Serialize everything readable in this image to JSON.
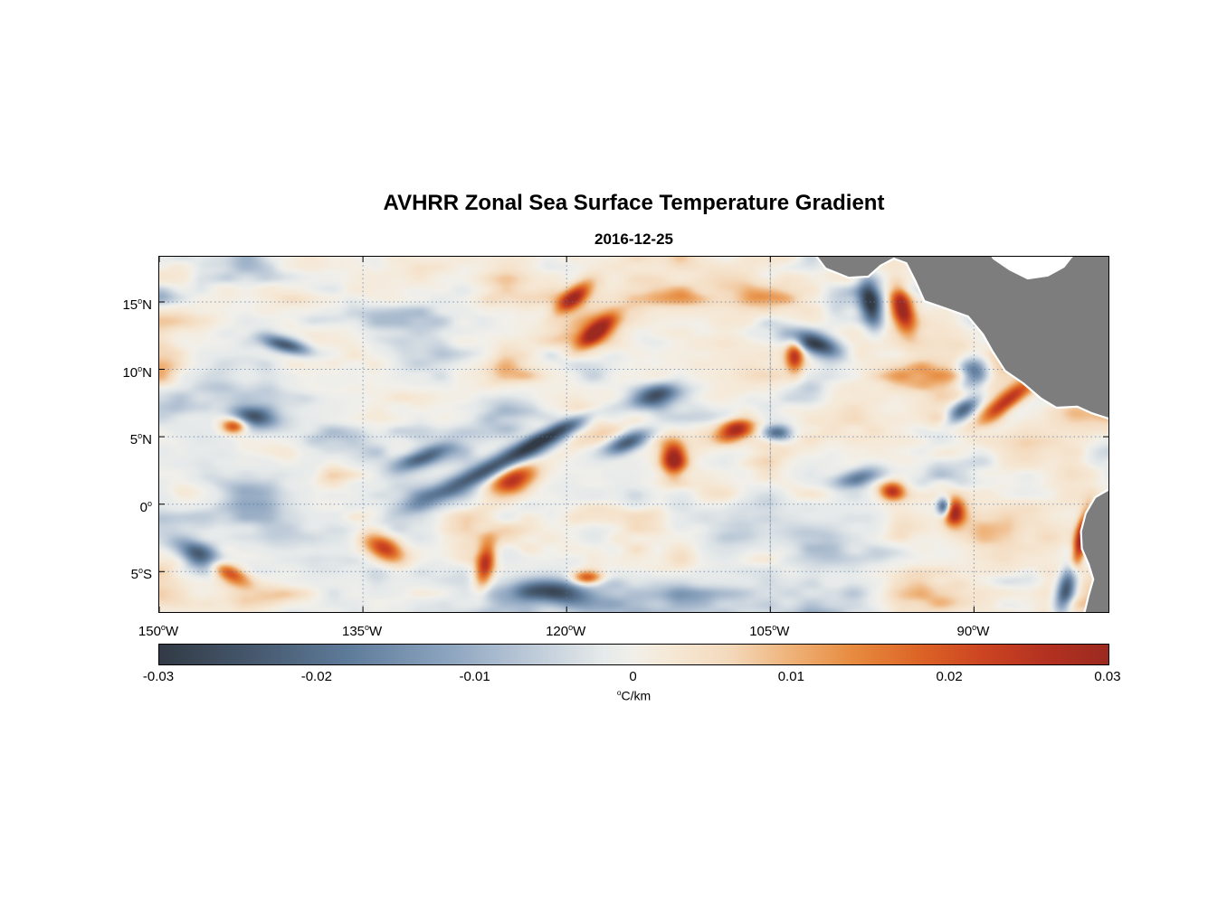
{
  "chart_data": {
    "type": "heatmap",
    "title": "AVHRR Zonal Sea Surface Temperature Gradient",
    "date": "2016-12-25",
    "x_axis": {
      "range": [
        -150,
        -80.1
      ],
      "tick_values": [
        -150,
        -135,
        -120,
        -105,
        -90
      ],
      "tick_labels": [
        "150°W",
        "135°W",
        "120°W",
        "105°W",
        "90°W"
      ],
      "grid_lons": [
        -135,
        -120,
        -105,
        -90
      ]
    },
    "y_axis": {
      "range": [
        -8.0,
        18.35
      ],
      "tick_values": [
        15,
        10,
        5,
        0,
        -5
      ],
      "tick_labels": [
        "15°N",
        "10°N",
        "5°N",
        "0°",
        "5°S"
      ],
      "grid_lats": [
        15,
        10,
        5,
        0,
        -5
      ]
    },
    "grid": {
      "style": "dotted",
      "color": "#5a7aa0",
      "swath_seam_lon": -105
    },
    "colorbar": {
      "range": [
        -0.03,
        0.03
      ],
      "tick_values": [
        -0.03,
        -0.02,
        -0.01,
        0,
        0.01,
        0.02,
        0.03
      ],
      "tick_labels": [
        "-0.03",
        "-0.02",
        "-0.01",
        "0",
        "0.01",
        "0.02",
        "0.03"
      ],
      "label": "°C/km",
      "stops": [
        [
          -0.03,
          "#323b46"
        ],
        [
          -0.024,
          "#47596f"
        ],
        [
          -0.018,
          "#5f7c9b"
        ],
        [
          -0.012,
          "#8ba3be"
        ],
        [
          -0.006,
          "#c2cedb"
        ],
        [
          -0.002,
          "#e6eaea"
        ],
        [
          0.0,
          "#f2f0ea"
        ],
        [
          0.002,
          "#f6ead9"
        ],
        [
          0.006,
          "#f4dabd"
        ],
        [
          0.01,
          "#efb278"
        ],
        [
          0.014,
          "#e78a3e"
        ],
        [
          0.018,
          "#dd6527"
        ],
        [
          0.022,
          "#cd4522"
        ],
        [
          0.026,
          "#b43221"
        ],
        [
          0.03,
          "#9d2a20"
        ]
      ]
    },
    "land_color": "#7d7d7d",
    "coast_color": "#ffffff",
    "land_polygons": [
      {
        "name": "no-data-wedge",
        "fill": "#ffffff",
        "pts": [
          [
            0.873,
            -0.02
          ],
          [
            0.879,
            0.005
          ],
          [
            0.896,
            0.036
          ],
          [
            0.915,
            0.061
          ],
          [
            0.936,
            0.053
          ],
          [
            0.953,
            0.028
          ],
          [
            0.967,
            -0.02
          ]
        ]
      },
      {
        "name": "landmass-central-america",
        "fill": "land",
        "pts": [
          [
            0.687,
            -0.02
          ],
          [
            0.702,
            0.033
          ],
          [
            0.726,
            0.059
          ],
          [
            0.747,
            0.056
          ],
          [
            0.76,
            0.025
          ],
          [
            0.774,
            0.005
          ],
          [
            0.787,
            0.018
          ],
          [
            0.797,
            0.071
          ],
          [
            0.806,
            0.125
          ],
          [
            0.828,
            0.145
          ],
          [
            0.852,
            0.168
          ],
          [
            0.868,
            0.219
          ],
          [
            0.878,
            0.267
          ],
          [
            0.891,
            0.321
          ],
          [
            0.91,
            0.356
          ],
          [
            0.929,
            0.399
          ],
          [
            0.945,
            0.425
          ],
          [
            0.967,
            0.422
          ],
          [
            0.982,
            0.44
          ],
          [
            1.02,
            0.473
          ],
          [
            1.02,
            -0.02
          ],
          [
            0.967,
            -0.02
          ],
          [
            0.953,
            0.028
          ],
          [
            0.936,
            0.053
          ],
          [
            0.915,
            0.061
          ],
          [
            0.896,
            0.036
          ],
          [
            0.879,
            0.005
          ],
          [
            0.873,
            -0.02
          ]
        ]
      },
      {
        "name": "landmass-south-america",
        "fill": "land",
        "pts": [
          [
            1.02,
            0.625
          ],
          [
            0.986,
            0.677
          ],
          [
            0.976,
            0.723
          ],
          [
            0.971,
            0.773
          ],
          [
            0.972,
            0.822
          ],
          [
            0.979,
            0.865
          ],
          [
            0.984,
            0.908
          ],
          [
            0.979,
            0.954
          ],
          [
            0.973,
            1.02
          ],
          [
            1.02,
            1.02
          ]
        ]
      }
    ],
    "feature_format": [
      "lon_deg",
      "lat_deg",
      "sigma_lon_deg",
      "sigma_lat_deg",
      "angle_deg",
      "gradient_C_per_km"
    ],
    "features": [
      [
        -95.3,
        14.6,
        0.7,
        1.6,
        -15,
        0.031
      ],
      [
        -97.6,
        14.9,
        0.7,
        1.7,
        -10,
        -0.029
      ],
      [
        -101.5,
        11.8,
        1.8,
        0.7,
        20,
        -0.026
      ],
      [
        -103.2,
        11.0,
        0.6,
        1.0,
        0,
        0.026
      ],
      [
        -90.0,
        9.8,
        1.1,
        1.0,
        -30,
        -0.028
      ],
      [
        -87.6,
        7.6,
        1.9,
        0.6,
        -38,
        0.027
      ],
      [
        -90.8,
        7.0,
        1.2,
        0.6,
        -35,
        -0.025
      ],
      [
        -113.5,
        8.0,
        1.6,
        0.7,
        -15,
        -0.024
      ],
      [
        -112.1,
        3.4,
        0.8,
        1.1,
        0,
        0.031
      ],
      [
        -115.5,
        4.6,
        1.5,
        0.6,
        -20,
        -0.026
      ],
      [
        -125.0,
        2.9,
        5.5,
        0.65,
        -25,
        -0.027
      ],
      [
        -121.0,
        5.3,
        2.5,
        0.5,
        -25,
        -0.024
      ],
      [
        -124.0,
        1.8,
        1.6,
        1.0,
        -25,
        0.028
      ],
      [
        -119.5,
        15.3,
        1.4,
        0.6,
        -40,
        0.026
      ],
      [
        -117.8,
        12.8,
        1.6,
        0.6,
        -40,
        0.024
      ],
      [
        -143.0,
        6.5,
        1.5,
        0.7,
        10,
        -0.024
      ],
      [
        -144.5,
        5.8,
        0.8,
        0.5,
        0,
        0.024
      ],
      [
        -140.7,
        11.8,
        1.6,
        0.5,
        15,
        -0.025
      ],
      [
        -147.0,
        -3.8,
        1.8,
        0.8,
        25,
        -0.026
      ],
      [
        -145.0,
        -5.0,
        1.4,
        0.6,
        25,
        0.027
      ],
      [
        -133.5,
        -3.2,
        1.5,
        0.8,
        30,
        0.026
      ],
      [
        -126.0,
        -4.5,
        0.6,
        1.5,
        10,
        0.025
      ],
      [
        -121.0,
        -6.5,
        2.2,
        0.7,
        5,
        -0.025
      ],
      [
        -118.5,
        -5.5,
        1.0,
        0.5,
        0,
        0.024
      ],
      [
        -107.5,
        5.6,
        1.2,
        0.7,
        -20,
        0.027
      ],
      [
        -104.5,
        5.3,
        1.0,
        0.5,
        0,
        -0.025
      ],
      [
        -91.5,
        -0.6,
        0.7,
        0.9,
        0,
        0.03
      ],
      [
        -92.2,
        -0.2,
        0.45,
        0.6,
        0,
        -0.03
      ],
      [
        -82.1,
        -2.6,
        0.45,
        1.9,
        12,
        0.031
      ],
      [
        -83.2,
        -6.3,
        0.6,
        1.6,
        15,
        -0.028
      ],
      [
        -130.5,
        3.5,
        2.0,
        0.6,
        -20,
        -0.023
      ],
      [
        -98.5,
        2.0,
        1.5,
        0.6,
        -10,
        -0.023
      ],
      [
        -96.0,
        1.0,
        0.8,
        0.6,
        0,
        0.024
      ]
    ],
    "noise": {
      "seed": 11,
      "amplitude": 0.017
    }
  }
}
